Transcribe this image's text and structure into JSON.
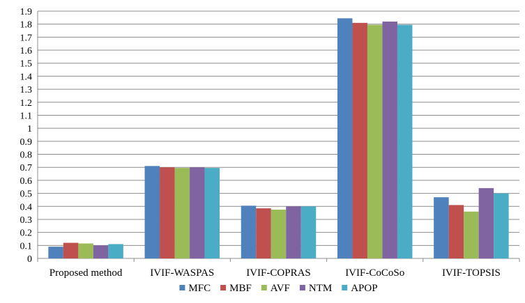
{
  "chart_data": {
    "type": "bar",
    "categories": [
      "Proposed method",
      "IVIF-WASPAS",
      "IVIF-COPRAS",
      "IVIF-CoCoSo",
      "IVIF-TOPSIS"
    ],
    "series": [
      {
        "name": "MFC",
        "color": "#4F81BD",
        "values": [
          0.09,
          0.71,
          0.405,
          1.845,
          0.47
        ]
      },
      {
        "name": "MBF",
        "color": "#C0504D",
        "values": [
          0.12,
          0.7,
          0.385,
          1.81,
          0.41
        ]
      },
      {
        "name": "AVF",
        "color": "#9BBB59",
        "values": [
          0.115,
          0.695,
          0.375,
          1.795,
          0.36
        ]
      },
      {
        "name": "NTM",
        "color": "#8064A2",
        "values": [
          0.1,
          0.7,
          0.4,
          1.82,
          0.54
        ]
      },
      {
        "name": "APOP",
        "color": "#4BACC6",
        "values": [
          0.11,
          0.695,
          0.4,
          1.795,
          0.5
        ]
      }
    ],
    "ylim": [
      0,
      1.9
    ],
    "ytick_step": 0.1,
    "yticks": [
      "0",
      "0.1",
      "0.2",
      "0.3",
      "0.4",
      "0.5",
      "0.6",
      "0.7",
      "0.8",
      "0.9",
      "1",
      "1.1",
      "1.2",
      "1.3",
      "1.4",
      "1.5",
      "1.6",
      "1.7",
      "1.8",
      "1.9"
    ],
    "grid": true,
    "legend": "bottom",
    "title": "",
    "xlabel": "",
    "ylabel": ""
  }
}
